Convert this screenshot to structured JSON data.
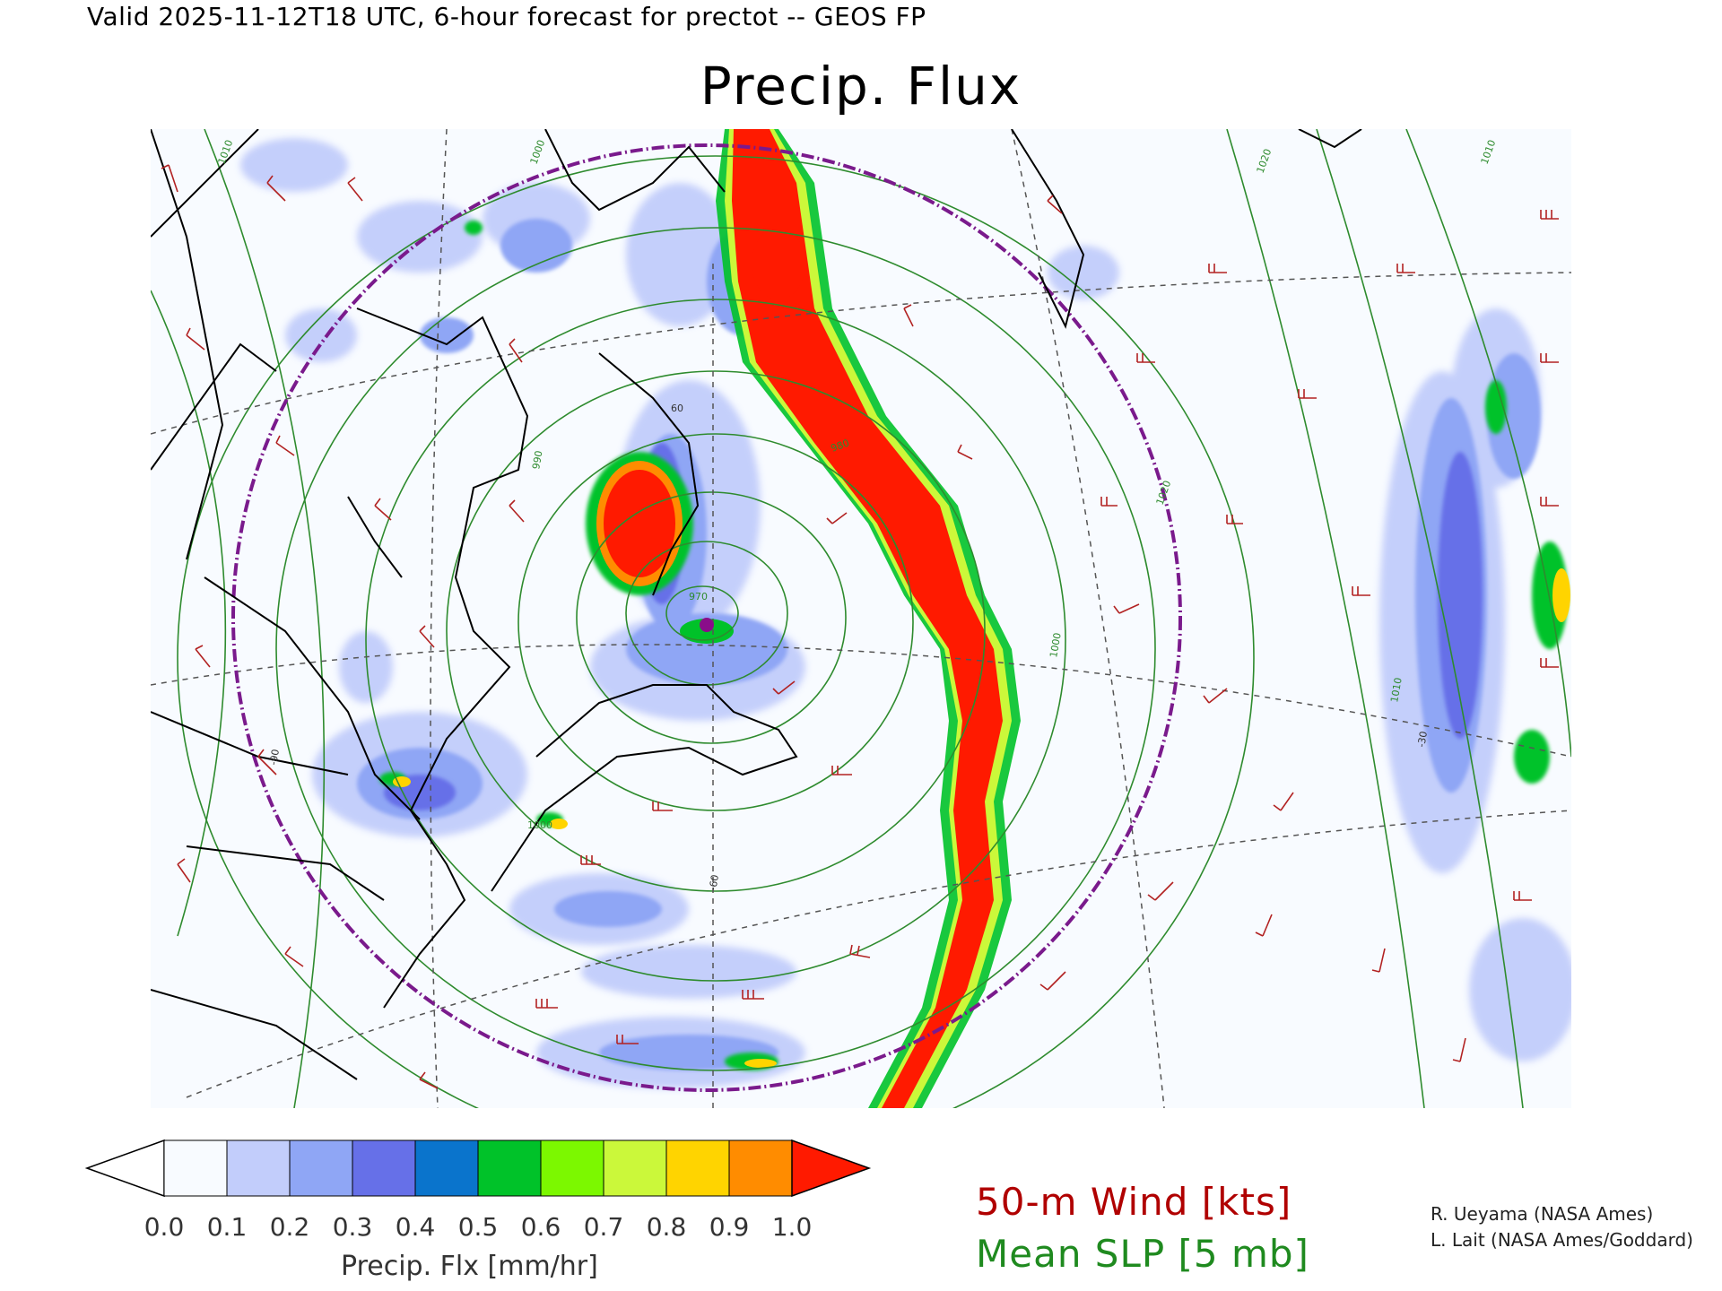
{
  "header": {
    "valid_line": "Valid 2025-11-12T18 UTC, 6-hour forecast for prectot -- GEOS FP",
    "title": "Precip. Flux"
  },
  "map": {
    "background_color": "#f8fbff",
    "contour_color": "#2e8b2e",
    "graticule_color": "#555555",
    "coastline_color": "#000000",
    "range_ring_color": "#7a1a8c",
    "wind_barb_color": "#b22222",
    "contour_labels": [
      "1010",
      "1000",
      "990",
      "980",
      "970",
      "1020",
      "1010",
      "1000",
      "1020",
      "1010",
      "1000"
    ],
    "graticule_labels": [
      "60",
      "-30",
      "-90",
      "-60"
    ]
  },
  "colorbar": {
    "colors": [
      "#ffffff",
      "#f8fbff",
      "#c2cdfb",
      "#8fa6f5",
      "#6670e8",
      "#0a74cc",
      "#00c229",
      "#7cf800",
      "#cbf83a",
      "#ffd400",
      "#ff8c00",
      "#ff1a00"
    ],
    "tick_labels": [
      "0.0",
      "0.1",
      "0.2",
      "0.3",
      "0.4",
      "0.5",
      "0.6",
      "0.7",
      "0.8",
      "0.9",
      "1.0"
    ],
    "title": "Precip. Flx [mm/hr]"
  },
  "legend": {
    "wind": "50-m Wind [kts]",
    "slp": "Mean SLP [5 mb]"
  },
  "credits": {
    "line1": "R. Ueyama (NASA Ames)",
    "line2": "L. Lait (NASA Ames/Goddard)"
  }
}
